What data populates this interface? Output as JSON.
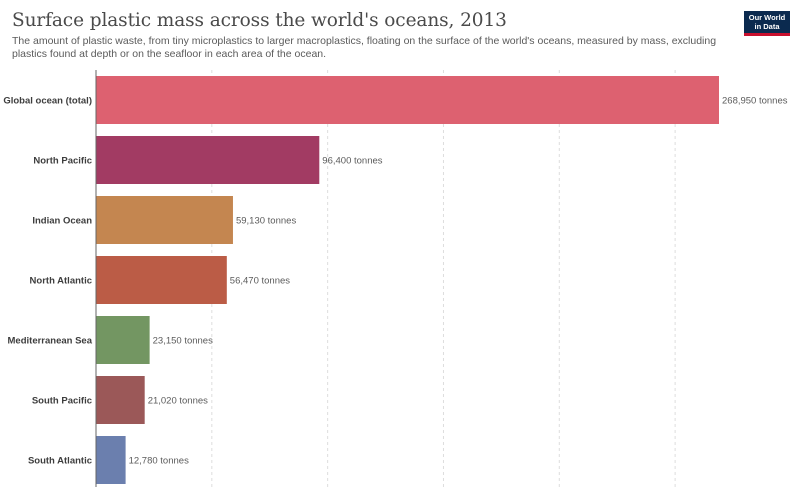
{
  "header": {
    "title": "Surface plastic mass across the world's oceans, 2013",
    "subtitle": "The amount of plastic waste, from tiny microplastics to larger macroplastics, floating on the surface of the world's oceans, measured by mass, excluding plastics found at depth or on the seafloor in each area of the ocean.",
    "logo_line1": "Our World",
    "logo_line2": "in Data"
  },
  "colors": {
    "logo_background": "#0b2a4f",
    "logo_accent": "#c8102e",
    "gridline": "#dddddd",
    "axis": "#666666"
  },
  "chart_data": {
    "type": "bar",
    "orientation": "horizontal",
    "unit": "tonnes",
    "xlim": [
      0,
      268950
    ],
    "grid": "vertical dashed",
    "categories": [
      "Global ocean (total)",
      "North Pacific",
      "Indian Ocean",
      "North Atlantic",
      "Mediterranean Sea",
      "South Pacific",
      "South Atlantic"
    ],
    "values": [
      268950,
      96400,
      59130,
      56470,
      23150,
      21020,
      12780
    ],
    "value_labels": [
      "268,950 tonnes",
      "96,400 tonnes",
      "59,130 tonnes",
      "56,470 tonnes",
      "23,150 tonnes",
      "21,020 tonnes",
      "12,780 tonnes"
    ],
    "bar_colors": [
      "#dd6170",
      "#a23b63",
      "#c48650",
      "#bb5c46",
      "#739662",
      "#9b5858",
      "#6b7fae"
    ]
  }
}
